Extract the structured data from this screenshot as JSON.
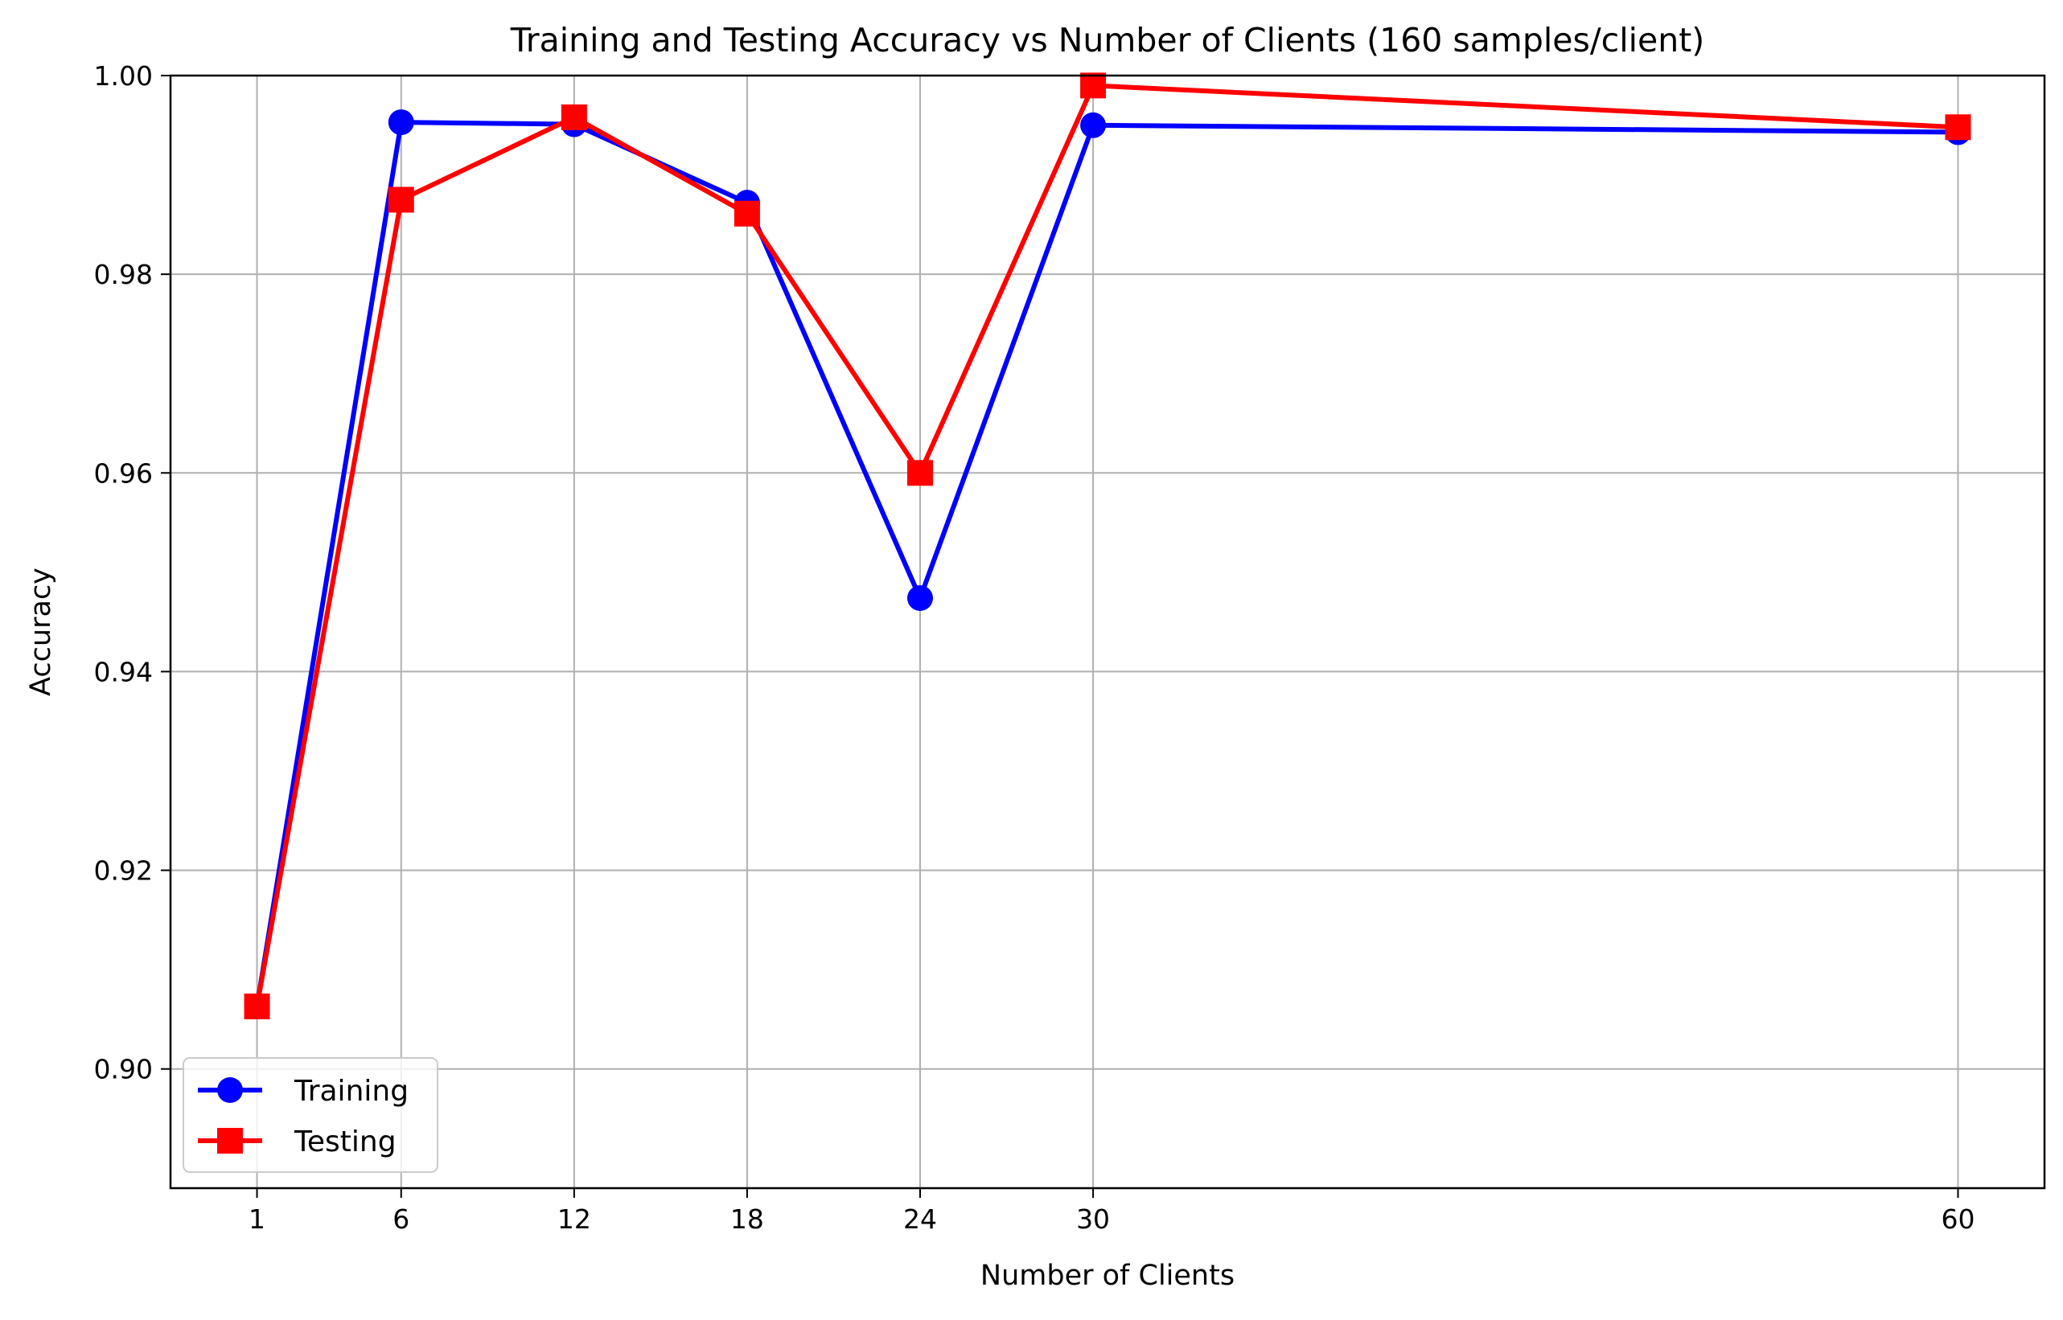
{
  "chart_data": {
    "type": "line",
    "title": "Training and Testing Accuracy vs Number of Clients (160 samples/client)",
    "xlabel": "Number of Clients",
    "ylabel": "Accuracy",
    "x": [
      1,
      6,
      12,
      18,
      24,
      30,
      60
    ],
    "xticks": [
      "1",
      "6",
      "12",
      "18",
      "24",
      "30",
      "60"
    ],
    "xlim": [
      -2,
      63
    ],
    "ylim": [
      0.888,
      1.0
    ],
    "yticks": [
      "0.90",
      "0.92",
      "0.94",
      "0.96",
      "0.98",
      "1.00"
    ],
    "grid": true,
    "legend_position": "lower-left",
    "series": [
      {
        "name": "Training",
        "color": "#0000ff",
        "marker": "circle",
        "values": [
          0.9063,
          0.9953,
          0.9951,
          0.9872,
          0.9474,
          0.995,
          0.9943
        ]
      },
      {
        "name": "Testing",
        "color": "#ff0000",
        "marker": "square",
        "values": [
          0.9063,
          0.9875,
          0.9958,
          0.9861,
          0.96,
          0.999,
          0.9948
        ]
      }
    ]
  }
}
